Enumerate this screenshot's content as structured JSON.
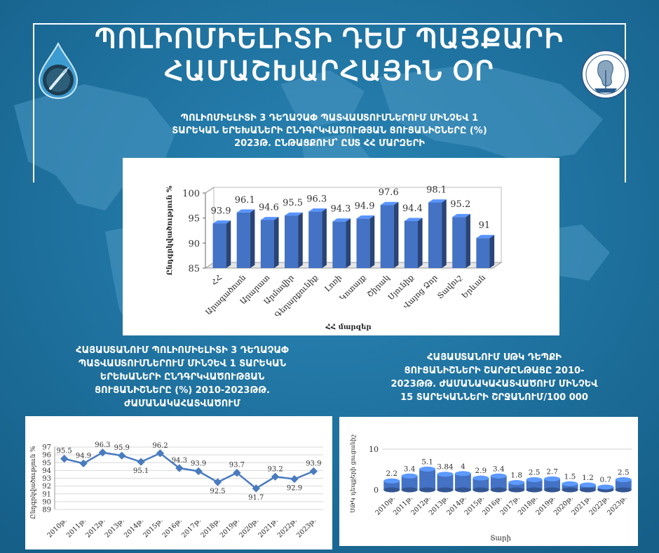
{
  "header": {
    "title_line1": "ՊՈԼԻՈՄԻԵԼԻՏԻ ԴԵՄ ՊԱՅՔԱՐԻ",
    "title_line2": "ՀԱՄԱՇԽԱՐՀԱՅԻՆ ՕՐ"
  },
  "colors": {
    "background": "#1b6f9c",
    "bar_fill": "#4472c4",
    "line_stroke": "#4a7bbf"
  },
  "logos": {
    "left": "drop-icon",
    "right": "medical-emblem-icon"
  },
  "chart_top": {
    "heading_lines": [
      "ՊՈԼԻՈՄԻԵԼԻՏԻ 3 ԴԵՂԱՉԱՓ ՊԱՏՎԱՍՏՈՒՄՆԵՐՈՒՄ ՄԻՆՉԵՎ 1",
      "ՏԱՐԵԿԱՆ ԵՐԵԽԱՆԵՐԻ ԸՆԴԳՐԿՎԱԾՈՒԹՅԱՆ ՑՈՒՑԱՆԻՇՆԵՐԸ (%)",
      "2023Թ. ԸՆԹԱՑՔՈՒՄ՝ ԸՍՏ ՀՀ ՄԱՐԶԵՐԻ"
    ],
    "chart_data": {
      "type": "bar",
      "categories": [
        "ՀՀ",
        "Արագածոտն",
        "Արարատ",
        "Արմավիր",
        "Գեղարքունիք",
        "Լոռի",
        "Կոտայք",
        "Շիրակ",
        "Սյունիք",
        "Վայոց Ձոր",
        "Տավուշ",
        "Երևան"
      ],
      "values": [
        93.9,
        96.1,
        94.6,
        95.5,
        96.3,
        94.3,
        94.9,
        97.6,
        94.4,
        98.1,
        95.2,
        91
      ],
      "value_labels": [
        "93.9",
        "96.1",
        "94.6",
        "95.5",
        "96.3",
        "94.3",
        "94.9",
        "97.6",
        "94.4",
        "98.1",
        "95.2",
        "91"
      ],
      "ylabel": "Ընդգրկվածություն %",
      "xlabel": "ՀՀ մարզեր",
      "ylim": [
        85,
        100
      ],
      "yticks": [
        85,
        90,
        95,
        100
      ],
      "grid": false
    }
  },
  "chart_bl": {
    "heading_lines": [
      "ՀԱՅԱՍՏԱՆՈՒՄ ՊՈԼԻՈՄԻԵԼԻՏԻ 3 ԴԵՂԱՉԱՓ",
      "ՊԱՏՎԱՍՏՈՒՄՆԵՐՈՒՄ ՄԻՆՉԵՎ 1 ՏԱՐԵԿԱՆ",
      "ԵՐԵԽԱՆԵՐԻ ԸՆԴԳՐԿՎԱԾՈՒԹՅԱՆ",
      "ՑՈՒՑԱՆԻՇՆԵՐԸ (%) 2010-2023ԹԹ.",
      "ԺԱՄԱՆԱԿԱՀԱՏՎԱԾՈՒՄ"
    ],
    "chart_data": {
      "type": "line",
      "categories": [
        "2010թ.",
        "2011թ.",
        "2012թ.",
        "2013թ.",
        "2014թ.",
        "2015թ.",
        "2016թ.",
        "2017թ.",
        "2018թ.",
        "2019թ.",
        "2020թ.",
        "2021թ.",
        "2022թ.",
        "2023թ."
      ],
      "values": [
        95.5,
        94.9,
        96.3,
        95.9,
        95.1,
        96.2,
        94.3,
        93.9,
        92.5,
        93.7,
        91.7,
        93.2,
        92.9,
        93.9
      ],
      "value_labels": [
        "95.5",
        "94.9",
        "96.3",
        "95.9",
        "95.1",
        "96.2",
        "94.3",
        "93.9",
        "92.5",
        "93.7",
        "91.7",
        "93.2",
        "92.9",
        "93.9"
      ],
      "ylabel": "Ընդգրկվածություն %",
      "ylim": [
        89,
        97
      ],
      "yticks": [
        89,
        90,
        91,
        92,
        93,
        94,
        95,
        96,
        97
      ],
      "grid": true
    }
  },
  "chart_br": {
    "heading_lines": [
      "ՀԱՅԱՍՏԱՆՈՒՄ ՍԹԿ ԴԵՊՔԻ",
      "ՑՈՒՑԱՆԻՇՆԵՐԻ ՇԱՐԺԸՆԹԱՑԸ 2010-",
      "2023ԹԹ. ԺԱՄԱՆԱԿԱՀԱՏՎԱԾՈՒՄ ՄԻՆՉԵՎ",
      "15 ՏԱՐԵԿԱՆՆԵՐԻ ՇՐՋԱՆՈՒՄ/100 000"
    ],
    "chart_data": {
      "type": "bar",
      "categories": [
        "2010թ.",
        "2011թ.",
        "2012թ.",
        "2013թ.",
        "2014թ.",
        "2015թ.",
        "2016թ.",
        "2017թ.",
        "2018թ.",
        "2019թ.",
        "2020թ.",
        "2021թ.",
        "2022թ.",
        "2023թ."
      ],
      "values": [
        2.2,
        3.4,
        5.1,
        3.84,
        4,
        2.9,
        3.4,
        1.8,
        2.5,
        2.7,
        1.5,
        1.2,
        0.7,
        2.5
      ],
      "value_labels": [
        "2.2",
        "3.4",
        "5.1",
        "3.84",
        "4",
        "2.9",
        "3.4",
        "1.8",
        "2.5",
        "2.7",
        "1.5",
        "1.2",
        "0.7",
        "2.5"
      ],
      "ylabel": "ՍԹԿ դեպքերի ցուցանիշ",
      "xlabel": "Տարի",
      "ylim": [
        0,
        10
      ],
      "yticks": [
        0,
        10
      ],
      "grid": true
    }
  }
}
